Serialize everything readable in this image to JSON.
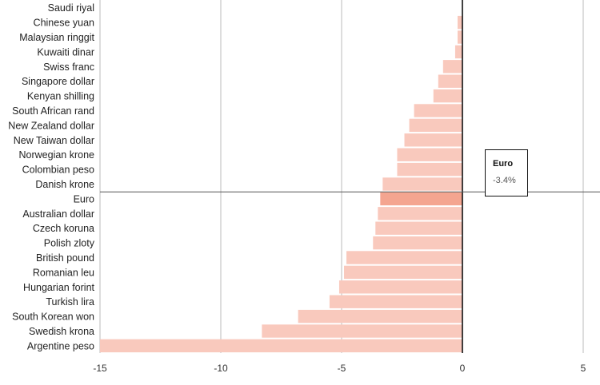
{
  "chart_data": {
    "type": "bar",
    "orientation": "horizontal",
    "categories": [
      "Saudi riyal",
      "Chinese yuan",
      "Malaysian ringgit",
      "Kuwaiti dinar",
      "Swiss franc",
      "Singapore dollar",
      "Kenyan shilling",
      "South African rand",
      "New Zealand dollar",
      "New Taiwan dollar",
      "Norwegian krone",
      "Colombian peso",
      "Danish krone",
      "Euro",
      "Australian dollar",
      "Czech koruna",
      "Polish zloty",
      "British pound",
      "Romanian leu",
      "Hungarian forint",
      "Turkish lira",
      "South Korean won",
      "Swedish krona",
      "Argentine peso"
    ],
    "values": [
      0,
      -0.2,
      -0.2,
      -0.3,
      -0.8,
      -1.0,
      -1.2,
      -2.0,
      -2.2,
      -2.4,
      -2.7,
      -2.7,
      -3.3,
      -3.4,
      -3.5,
      -3.6,
      -3.7,
      -4.8,
      -4.9,
      -5.1,
      -5.5,
      -6.8,
      -8.3,
      -15.0
    ],
    "xlim": [
      -15,
      5
    ],
    "xticks": [
      "-15",
      "-10",
      "-5",
      "0",
      "5"
    ],
    "grid": true,
    "bar_color": "#f9c9bd",
    "highlight_color": "#f4a590",
    "highlight_category": "Euro",
    "tooltip": {
      "name": "Euro",
      "value": "-3.4%"
    }
  }
}
